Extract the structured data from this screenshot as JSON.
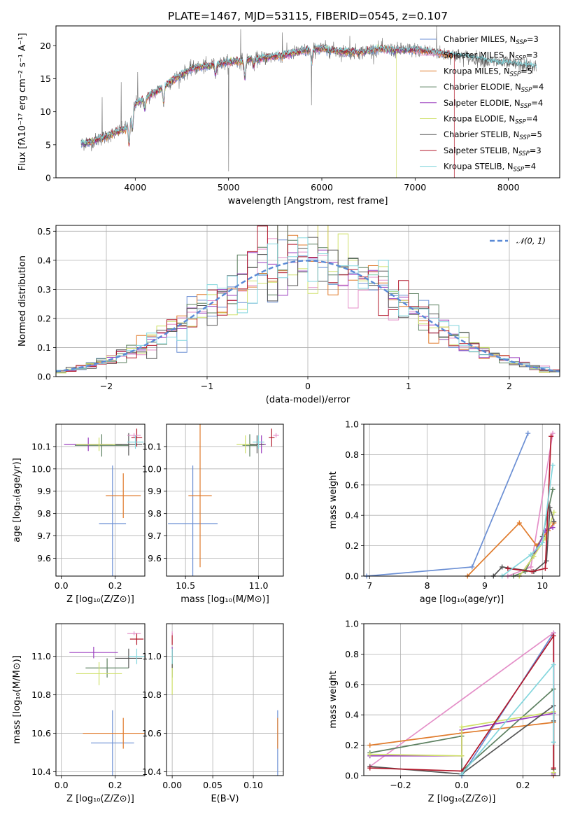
{
  "title": "PLATE=1467, MJD=53115, FIBERID=0545, z=0.107",
  "colors": {
    "c_miles": "#6b8fd4",
    "s_miles": "#e48fc8",
    "k_miles": "#e07b2c",
    "c_elodie": "#5c8060",
    "s_elodie": "#9b3fbf",
    "k_elodie": "#cfe06a",
    "c_stelib": "#555555",
    "s_stelib": "#b2182b",
    "k_stelib": "#83d6dd"
  },
  "chart_data": [
    {
      "id": "spectrum",
      "type": "line",
      "title": "PLATE=1467, MJD=53115, FIBERID=0545, z=0.107",
      "xlabel": "wavelength [Angstrom, rest frame]",
      "ylabel": "Flux [fλ10⁻¹⁷ erg cm⁻² s⁻¹ A⁻¹]",
      "xlim": [
        3150,
        8550
      ],
      "ylim": [
        0,
        23
      ],
      "xticks": [
        4000,
        5000,
        6000,
        7000,
        8000
      ],
      "yticks": [
        0,
        5,
        10,
        15,
        20
      ],
      "grid": false,
      "legend": "top-right",
      "legend_entries": [
        {
          "pre": "Chabrier MILES, N",
          "sub": "SSP",
          "post": "=3",
          "color": "#6b8fd4"
        },
        {
          "pre": "Salpeter MILES, N",
          "sub": "SSP",
          "post": "=3",
          "color": "#e48fc8"
        },
        {
          "pre": "Kroupa MILES, N",
          "sub": "SSP",
          "post": "=5",
          "color": "#e07b2c"
        },
        {
          "pre": "Chabrier ELODIE, N",
          "sub": "SSP",
          "post": "=4",
          "color": "#5c8060"
        },
        {
          "pre": "Salpeter ELODIE, N",
          "sub": "SSP",
          "post": "=4",
          "color": "#9b3fbf"
        },
        {
          "pre": "Kroupa ELODIE, N",
          "sub": "SSP",
          "post": "=4",
          "color": "#cfe06a"
        },
        {
          "pre": "Chabrier STELIB, N",
          "sub": "SSP",
          "post": "=5",
          "color": "#555555"
        },
        {
          "pre": "Salpeter STELIB, N",
          "sub": "SSP",
          "post": "=3",
          "color": "#b2182b"
        },
        {
          "pre": "Kroupa STELIB, N",
          "sub": "SSP",
          "post": "=4",
          "color": "#83d6dd"
        }
      ],
      "continuum": {
        "x": [
          3420,
          3500,
          3700,
          3900,
          4000,
          4200,
          4400,
          4600,
          4800,
          5000,
          5200,
          5400,
          5600,
          5800,
          6000,
          6200,
          6400,
          6600,
          6800,
          7000,
          7200,
          7400,
          7600,
          7800,
          8000,
          8200,
          8300
        ],
        "y": [
          5.2,
          5.3,
          6.3,
          7.5,
          11.2,
          12.8,
          14.8,
          16.5,
          17.0,
          17.5,
          17.8,
          18.2,
          18.6,
          19.2,
          19.6,
          19.1,
          19.0,
          19.5,
          19.3,
          19.4,
          19.0,
          18.6,
          18.2,
          17.6,
          17.3,
          17.0,
          16.8
        ]
      },
      "absorption_dips": [
        {
          "x": 3934,
          "depth": 3.8
        },
        {
          "x": 3969,
          "depth": 2.8
        },
        {
          "x": 4102,
          "depth": 1.6
        },
        {
          "x": 4304,
          "depth": 2.5
        },
        {
          "x": 4861,
          "depth": 1.4
        },
        {
          "x": 5175,
          "depth": 2.6
        },
        {
          "x": 5270,
          "depth": 1.1
        },
        {
          "x": 5892,
          "depth": 2.0
        }
      ],
      "data_spikes": [
        {
          "x": 3645,
          "y": 12.2
        },
        {
          "x": 3850,
          "y": 14.5
        },
        {
          "x": 4025,
          "y": 16.0
        },
        {
          "x": 5000,
          "y": 1.0
        },
        {
          "x": 5130,
          "y": 22.5
        },
        {
          "x": 5577,
          "y": 22.0
        },
        {
          "x": 5890,
          "y": 11.0
        },
        {
          "x": 6300,
          "y": 21.5
        },
        {
          "x": 7230,
          "y": 23.0
        }
      ]
    },
    {
      "id": "residuals",
      "type": "line",
      "xlabel": "(data-model)/error",
      "ylabel": "Normed distribution",
      "xlim": [
        -2.5,
        2.5
      ],
      "ylim": [
        0,
        0.52
      ],
      "xticks": [
        -2,
        -1,
        0,
        1,
        2
      ],
      "yticks": [
        0.0,
        0.1,
        0.2,
        0.3,
        0.4,
        0.5
      ],
      "grid": true,
      "legend": "top-right",
      "legend_entries": [
        {
          "label": "𝒩(0, 1)",
          "style": "dashed",
          "color": "#5a8ad6"
        }
      ],
      "bin_width": 0.1
    },
    {
      "id": "age_vs_Z",
      "type": "scatter",
      "xlabel": "Z [log₁₀(Z/Z⊙)]",
      "ylabel": "age  [log₁₀(age/yr)]",
      "xlim": [
        -0.02,
        0.31
      ],
      "ylim": [
        9.52,
        10.2
      ],
      "xticks": [
        0.0,
        0.2
      ],
      "yticks": [
        9.6,
        9.7,
        9.8,
        9.9,
        10.0,
        10.1
      ],
      "grid": true,
      "points": [
        {
          "model": "c_miles",
          "x": 0.19,
          "xerr": 0.05,
          "y": 9.755,
          "yerr": 0.26
        },
        {
          "model": "k_miles",
          "x": 0.23,
          "xerr": 0.065,
          "y": 9.88,
          "yerr": 0.1
        },
        {
          "model": "c_elodie",
          "x": 0.15,
          "xerr": 0.1,
          "y": 10.105,
          "yerr": 0.05
        },
        {
          "model": "s_elodie",
          "x": 0.1,
          "xerr": 0.09,
          "y": 10.11,
          "yerr": 0.03
        },
        {
          "model": "k_elodie",
          "x": 0.14,
          "xerr": 0.085,
          "y": 10.11,
          "yerr": 0.03
        },
        {
          "model": "c_stelib",
          "x": 0.25,
          "xerr": 0.05,
          "y": 10.11,
          "yerr": 0.05
        },
        {
          "model": "s_stelib",
          "x": 0.28,
          "xerr": 0.02,
          "y": 10.14,
          "yerr": 0.04
        },
        {
          "model": "s_miles",
          "x": 0.27,
          "xerr": 0.025,
          "y": 10.15,
          "yerr": 0.01
        },
        {
          "model": "k_stelib",
          "x": 0.275,
          "xerr": 0.03,
          "y": 10.12,
          "yerr": 0.03
        }
      ]
    },
    {
      "id": "age_vs_mass",
      "type": "scatter",
      "xlabel": "mass [log₁₀(M/M⊙)]",
      "ylabel": "",
      "xlim": [
        10.37,
        11.17
      ],
      "ylim": [
        9.52,
        10.2
      ],
      "xticks": [
        10.5,
        11.0
      ],
      "yticks": [
        9.6,
        9.7,
        9.8,
        9.9,
        10.0,
        10.1
      ],
      "grid": true,
      "points": [
        {
          "model": "c_miles",
          "x": 10.55,
          "xerr": 0.17,
          "y": 9.755,
          "yerr": 0.26
        },
        {
          "model": "k_miles",
          "x": 10.6,
          "xerr": 0.08,
          "y": 9.88,
          "yerr": 0.32
        },
        {
          "model": "c_elodie",
          "x": 10.94,
          "xerr": 0.05,
          "y": 10.105,
          "yerr": 0.05
        },
        {
          "model": "s_elodie",
          "x": 11.02,
          "xerr": 0.03,
          "y": 10.11,
          "yerr": 0.04
        },
        {
          "model": "k_elodie",
          "x": 10.91,
          "xerr": 0.06,
          "y": 10.11,
          "yerr": 0.04
        },
        {
          "model": "c_stelib",
          "x": 10.99,
          "xerr": 0.05,
          "y": 10.11,
          "yerr": 0.04
        },
        {
          "model": "s_stelib",
          "x": 11.09,
          "xerr": 0.02,
          "y": 10.14,
          "yerr": 0.04
        },
        {
          "model": "s_miles",
          "x": 11.12,
          "xerr": 0.02,
          "y": 10.15,
          "yerr": 0.01
        },
        {
          "model": "k_stelib",
          "x": 11.0,
          "xerr": 0.04,
          "y": 10.12,
          "yerr": 0.03
        }
      ]
    },
    {
      "id": "weight_vs_age",
      "type": "line",
      "xlabel": "age  [log₁₀(age/yr)]",
      "ylabel": "mass weight",
      "xlim": [
        6.9,
        10.3
      ],
      "ylim": [
        0,
        1.0
      ],
      "xticks": [
        7,
        8,
        9,
        10
      ],
      "yticks": [
        0.0,
        0.2,
        0.4,
        0.6,
        0.8,
        1.0
      ],
      "grid": true,
      "series": [
        {
          "model": "c_miles",
          "x": [
            6.95,
            8.78,
            9.75
          ],
          "y": [
            0.0,
            0.06,
            0.94
          ]
        },
        {
          "model": "s_miles",
          "x": [
            9.4,
            9.8,
            10.18
          ],
          "y": [
            0.0,
            0.06,
            0.94
          ]
        },
        {
          "model": "k_miles",
          "x": [
            8.7,
            9.6,
            9.9,
            10.1,
            10.2
          ],
          "y": [
            0.0,
            0.35,
            0.2,
            0.3,
            0.35
          ]
        },
        {
          "model": "c_elodie",
          "x": [
            9.5,
            9.7,
            10.0,
            10.18
          ],
          "y": [
            0.0,
            0.03,
            0.26,
            0.57
          ]
        },
        {
          "model": "s_elodie",
          "x": [
            9.6,
            9.85,
            10.05,
            10.18
          ],
          "y": [
            0.0,
            0.13,
            0.3,
            0.32
          ]
        },
        {
          "model": "k_elodie",
          "x": [
            9.6,
            9.85,
            10.05,
            10.2
          ],
          "y": [
            0.0,
            0.13,
            0.25,
            0.42
          ]
        },
        {
          "model": "c_stelib",
          "x": [
            9.15,
            9.3,
            9.85,
            10.07,
            10.13,
            10.2
          ],
          "y": [
            0.0,
            0.06,
            0.03,
            0.1,
            0.45,
            0.36
          ]
        },
        {
          "model": "s_stelib",
          "x": [
            9.4,
            9.82,
            10.05,
            10.15
          ],
          "y": [
            0.05,
            0.03,
            0.05,
            0.92
          ]
        },
        {
          "model": "k_stelib",
          "x": [
            9.3,
            9.8,
            10.0,
            10.18
          ],
          "y": [
            0.0,
            0.14,
            0.22,
            0.73
          ]
        }
      ]
    },
    {
      "id": "mass_vs_Z",
      "type": "scatter",
      "xlabel": "Z [log₁₀(Z/Z⊙)]",
      "ylabel": "mass [log₁₀(M/M⊙)]",
      "xlim": [
        -0.02,
        0.31
      ],
      "ylim": [
        10.38,
        11.17
      ],
      "xticks": [
        0.0,
        0.2
      ],
      "yticks": [
        10.4,
        10.6,
        10.8,
        11.0
      ],
      "grid": true,
      "points": [
        {
          "model": "c_miles",
          "x": 0.19,
          "xerr": 0.08,
          "y": 10.55,
          "yerr": 0.17
        },
        {
          "model": "k_miles",
          "x": 0.23,
          "xerr": 0.15,
          "y": 10.6,
          "yerr": 0.08
        },
        {
          "model": "c_elodie",
          "x": 0.17,
          "xerr": 0.08,
          "y": 10.94,
          "yerr": 0.05
        },
        {
          "model": "s_elodie",
          "x": 0.12,
          "xerr": 0.09,
          "y": 11.02,
          "yerr": 0.03
        },
        {
          "model": "k_elodie",
          "x": 0.14,
          "xerr": 0.085,
          "y": 10.91,
          "yerr": 0.06
        },
        {
          "model": "c_stelib",
          "x": 0.25,
          "xerr": 0.05,
          "y": 10.99,
          "yerr": 0.05
        },
        {
          "model": "s_stelib",
          "x": 0.28,
          "xerr": 0.025,
          "y": 11.09,
          "yerr": 0.03
        },
        {
          "model": "s_miles",
          "x": 0.27,
          "xerr": 0.025,
          "y": 11.12,
          "yerr": 0.01
        },
        {
          "model": "k_stelib",
          "x": 0.28,
          "xerr": 0.03,
          "y": 11.0,
          "yerr": 0.04
        }
      ]
    },
    {
      "id": "mass_vs_EBV",
      "type": "scatter",
      "xlabel": "E(B-V)",
      "ylabel": "",
      "xlim": [
        -0.007,
        0.137
      ],
      "ylim": [
        10.38,
        11.17
      ],
      "xticks": [
        0.0,
        0.05,
        0.1
      ],
      "yticks": [
        10.4,
        10.6,
        10.8,
        11.0
      ],
      "grid": true,
      "points": [
        {
          "model": "c_miles",
          "x": 0.13,
          "xerr": 0.0,
          "y": 10.55,
          "yerr": 0.17
        },
        {
          "model": "k_miles",
          "x": 0.13,
          "xerr": 0.0,
          "y": 10.6,
          "yerr": 0.08
        },
        {
          "model": "c_elodie",
          "x": 0.0,
          "xerr": 0.0,
          "y": 10.94,
          "yerr": 0.05
        },
        {
          "model": "s_elodie",
          "x": 0.0,
          "xerr": 0.0,
          "y": 11.02,
          "yerr": 0.03
        },
        {
          "model": "k_elodie",
          "x": 0.0,
          "xerr": 0.0,
          "y": 10.91,
          "yerr": 0.11
        },
        {
          "model": "c_stelib",
          "x": 0.0,
          "xerr": 0.0,
          "y": 10.99,
          "yerr": 0.05
        },
        {
          "model": "s_stelib",
          "x": 0.0,
          "xerr": 0.0,
          "y": 11.09,
          "yerr": 0.03
        },
        {
          "model": "s_miles",
          "x": 0.0,
          "xerr": 0.0,
          "y": 11.12,
          "yerr": 0.01
        },
        {
          "model": "k_stelib",
          "x": 0.0,
          "xerr": 0.0,
          "y": 11.0,
          "yerr": 0.04
        }
      ]
    },
    {
      "id": "weight_vs_Z",
      "type": "line",
      "xlabel": "Z [log₁₀(Z/Z⊙)]",
      "ylabel": "mass weight",
      "xlim": [
        -0.32,
        0.32
      ],
      "ylim": [
        0,
        1.0
      ],
      "xticks": [
        -0.2,
        0.0,
        0.2
      ],
      "yticks": [
        0.0,
        0.2,
        0.4,
        0.6,
        0.8,
        1.0
      ],
      "grid": true,
      "series": [
        {
          "model": "c_miles",
          "x": [
            0.0,
            0.3,
            0.3
          ],
          "y": [
            0.0,
            0.94,
            0.02
          ]
        },
        {
          "model": "s_miles",
          "x": [
            -0.3,
            0.3,
            0.3
          ],
          "y": [
            0.06,
            0.94,
            0.0
          ]
        },
        {
          "model": "k_miles",
          "x": [
            -0.3,
            0.0,
            0.3,
            0.3
          ],
          "y": [
            0.2,
            0.28,
            0.35,
            0.0
          ]
        },
        {
          "model": "c_elodie",
          "x": [
            -0.3,
            0.0,
            0.0,
            0.3,
            0.3
          ],
          "y": [
            0.15,
            0.26,
            0.03,
            0.57,
            0.04
          ]
        },
        {
          "model": "s_elodie",
          "x": [
            -0.3,
            0.0,
            0.0,
            0.3,
            0.3
          ],
          "y": [
            0.13,
            0.13,
            0.3,
            0.41,
            0.01
          ]
        },
        {
          "model": "k_elodie",
          "x": [
            -0.3,
            0.0,
            0.0,
            0.3,
            0.3
          ],
          "y": [
            0.14,
            0.13,
            0.32,
            0.42,
            0.02
          ]
        },
        {
          "model": "c_stelib",
          "x": [
            -0.3,
            0.0,
            0.3,
            0.3
          ],
          "y": [
            0.06,
            0.01,
            0.46,
            0.36
          ]
        },
        {
          "model": "s_stelib",
          "x": [
            -0.3,
            0.0,
            0.3,
            0.3
          ],
          "y": [
            0.05,
            0.03,
            0.92,
            0.05
          ]
        },
        {
          "model": "k_stelib",
          "x": [
            0.0,
            0.3,
            0.3
          ],
          "y": [
            0.01,
            0.73,
            0.22
          ]
        }
      ]
    }
  ]
}
